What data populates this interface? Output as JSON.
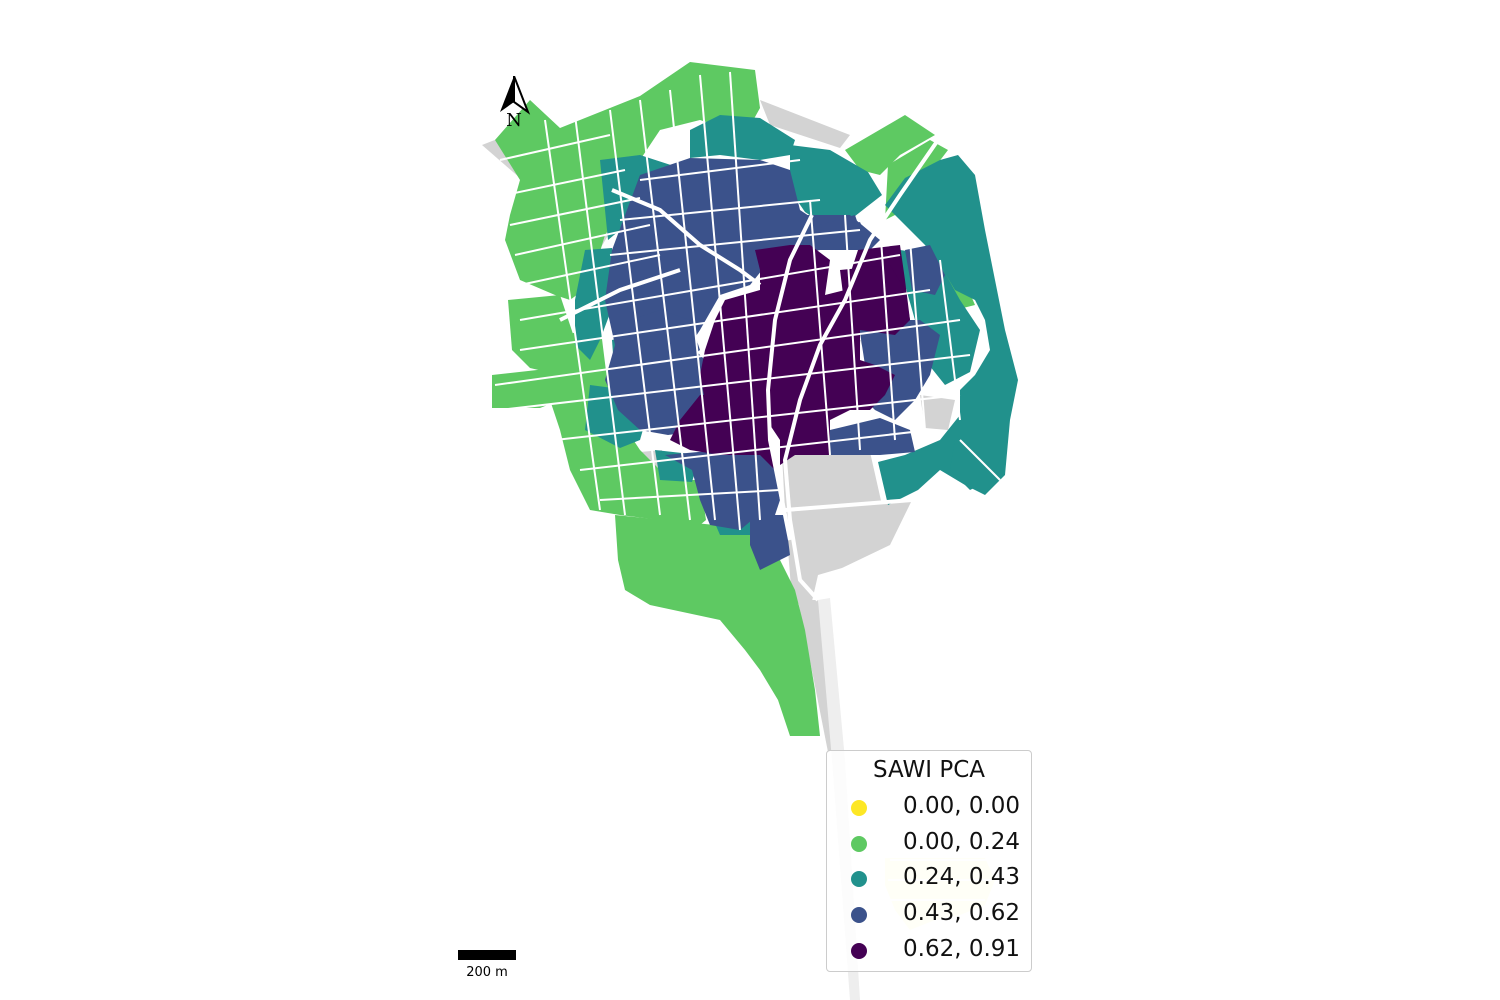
{
  "map": {
    "north_label": "N",
    "scale_label": "200 m",
    "colors": {
      "background_area": "#d3d3d3",
      "street_lines": "#ffffff",
      "class_0": "#fde725",
      "class_1": "#5ec962",
      "class_2": "#21918c",
      "class_3": "#3b528b",
      "class_4": "#440154"
    }
  },
  "legend": {
    "title": "SAWI PCA",
    "items": [
      {
        "label": "0.00, 0.00",
        "color": "#fde725"
      },
      {
        "label": "0.00, 0.24",
        "color": "#5ec962"
      },
      {
        "label": "0.24, 0.43",
        "color": "#21918c"
      },
      {
        "label": "0.43, 0.62",
        "color": "#3b528b"
      },
      {
        "label": "0.62, 0.91",
        "color": "#440154"
      }
    ]
  }
}
